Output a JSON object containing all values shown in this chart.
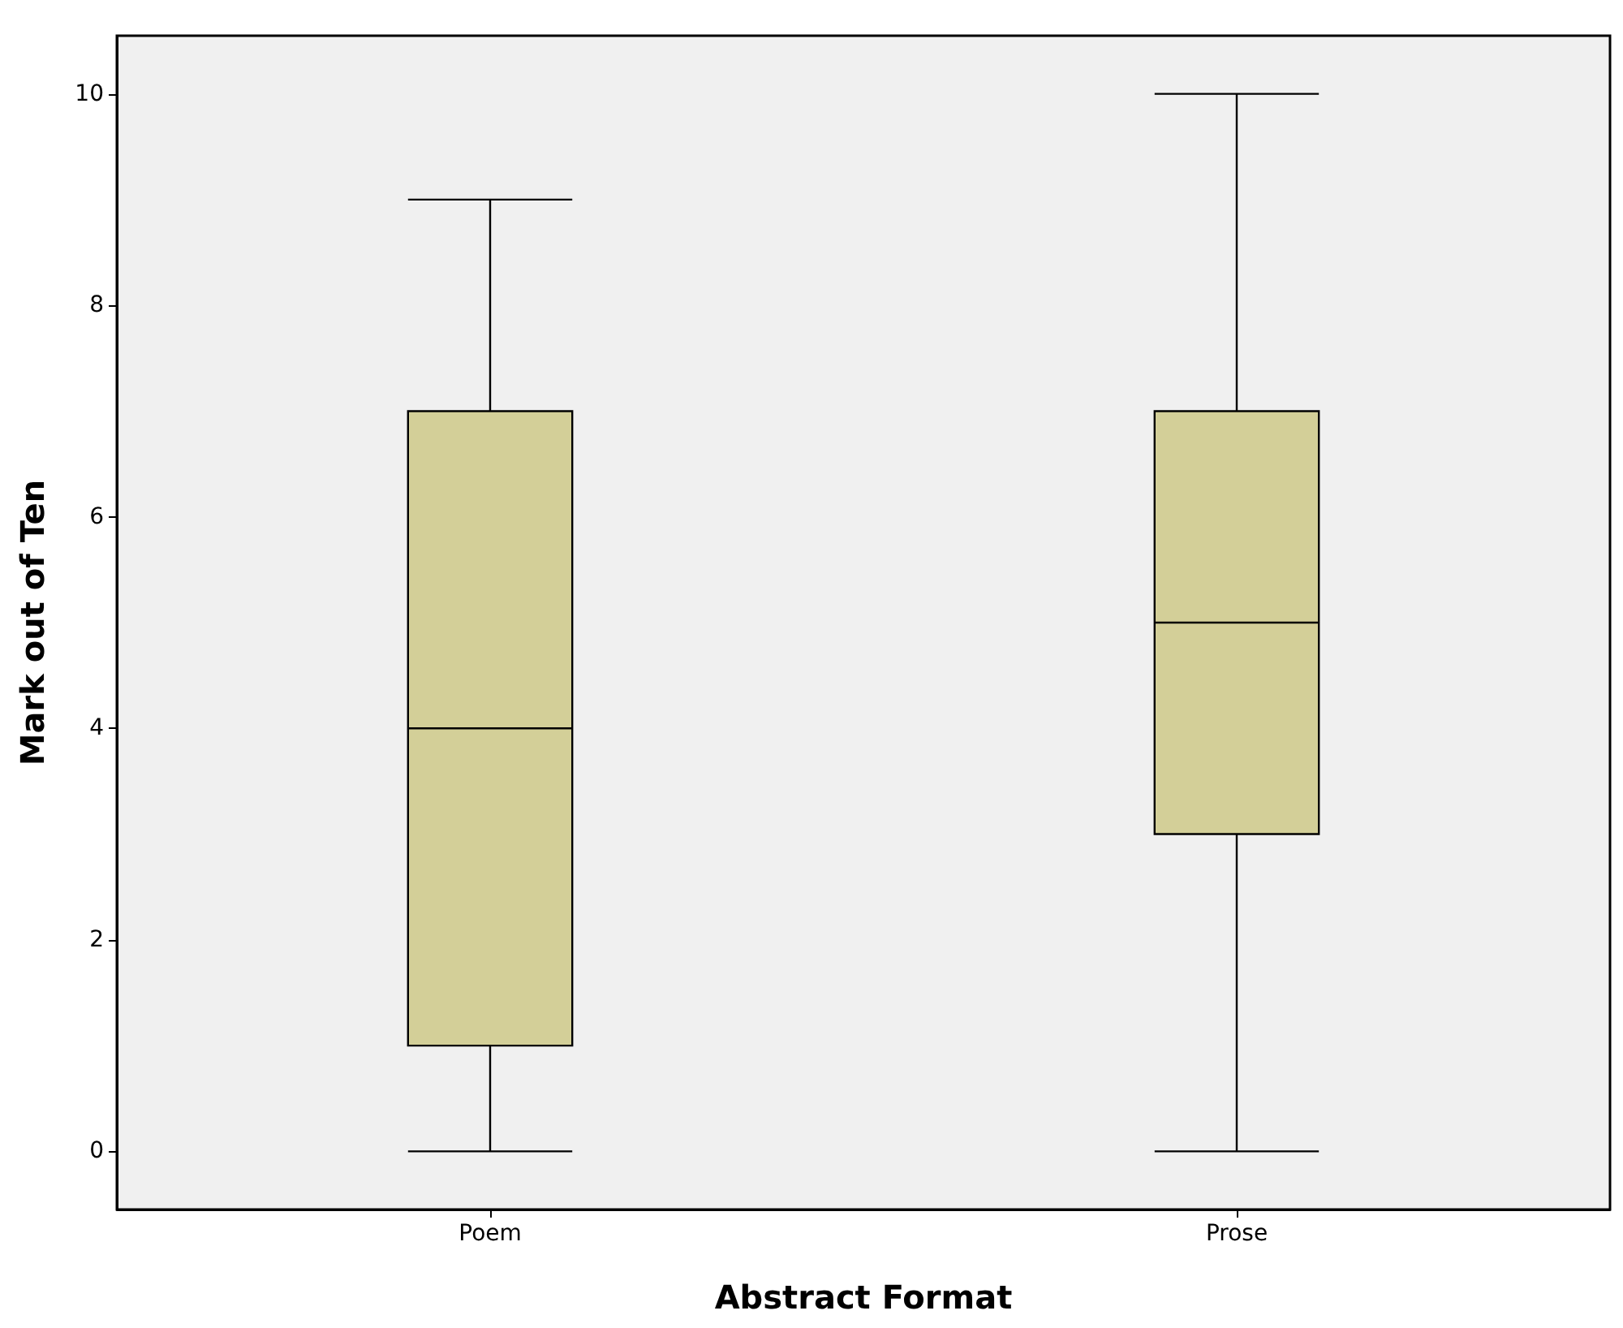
{
  "chart_data": {
    "type": "box",
    "xlabel": "Abstract Format",
    "ylabel": "Mark out of Ten",
    "categories": [
      "Poem",
      "Prose"
    ],
    "boxes": [
      {
        "low": 0,
        "q1": 1,
        "median": 4,
        "q3": 7,
        "high": 9
      },
      {
        "low": 0,
        "q1": 3,
        "median": 5,
        "q3": 7,
        "high": 10
      }
    ],
    "color": "#d3cf98",
    "ylim": [
      -0.55,
      10.55
    ],
    "yticks": [
      0,
      2,
      4,
      6,
      8,
      10
    ]
  }
}
